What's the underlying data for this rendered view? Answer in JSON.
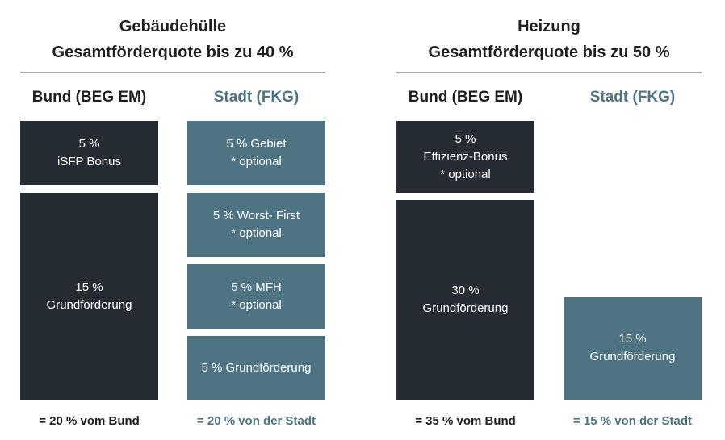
{
  "left_section": {
    "title_line1": "Gebäudehülle",
    "title_line2": "Gesamtförderquote bis zu 40 %",
    "bund": {
      "header": "Bund (BEG EM)",
      "blocks": [
        {
          "line1": "5 %",
          "line2": "iSFP Bonus"
        },
        {
          "line1": "15 %",
          "line2": "Grundförderung"
        }
      ],
      "footer": "= 20 % vom Bund"
    },
    "stadt": {
      "header": "Stadt (FKG)",
      "blocks": [
        {
          "line1": "5 % Gebiet",
          "line2": "* optional"
        },
        {
          "line1": "5 % Worst- First",
          "line2": "* optional"
        },
        {
          "line1": "5 % MFH",
          "line2": "* optional"
        },
        {
          "line1": "5 % Grundförderung"
        }
      ],
      "footer": "= 20 % von der Stadt"
    }
  },
  "right_section": {
    "title_line1": "Heizung",
    "title_line2": "Gesamtförderquote bis zu 50 %",
    "bund": {
      "header": "Bund (BEG EM)",
      "blocks": [
        {
          "line1": "5 %",
          "line2": "Effizienz-Bonus",
          "line3": "* optional"
        },
        {
          "line1": "30 %",
          "line2": "Grundförderung"
        }
      ],
      "footer": "= 35 % vom Bund"
    },
    "stadt": {
      "header": "Stadt (FKG)",
      "blocks": [
        {
          "line1": "15 %",
          "line2": "Grundförderung"
        }
      ],
      "footer": "= 15 % von der Stadt"
    }
  },
  "colors": {
    "bund": "#252c33",
    "stadt": "#4e7484",
    "rule": "#a6a6a6"
  }
}
